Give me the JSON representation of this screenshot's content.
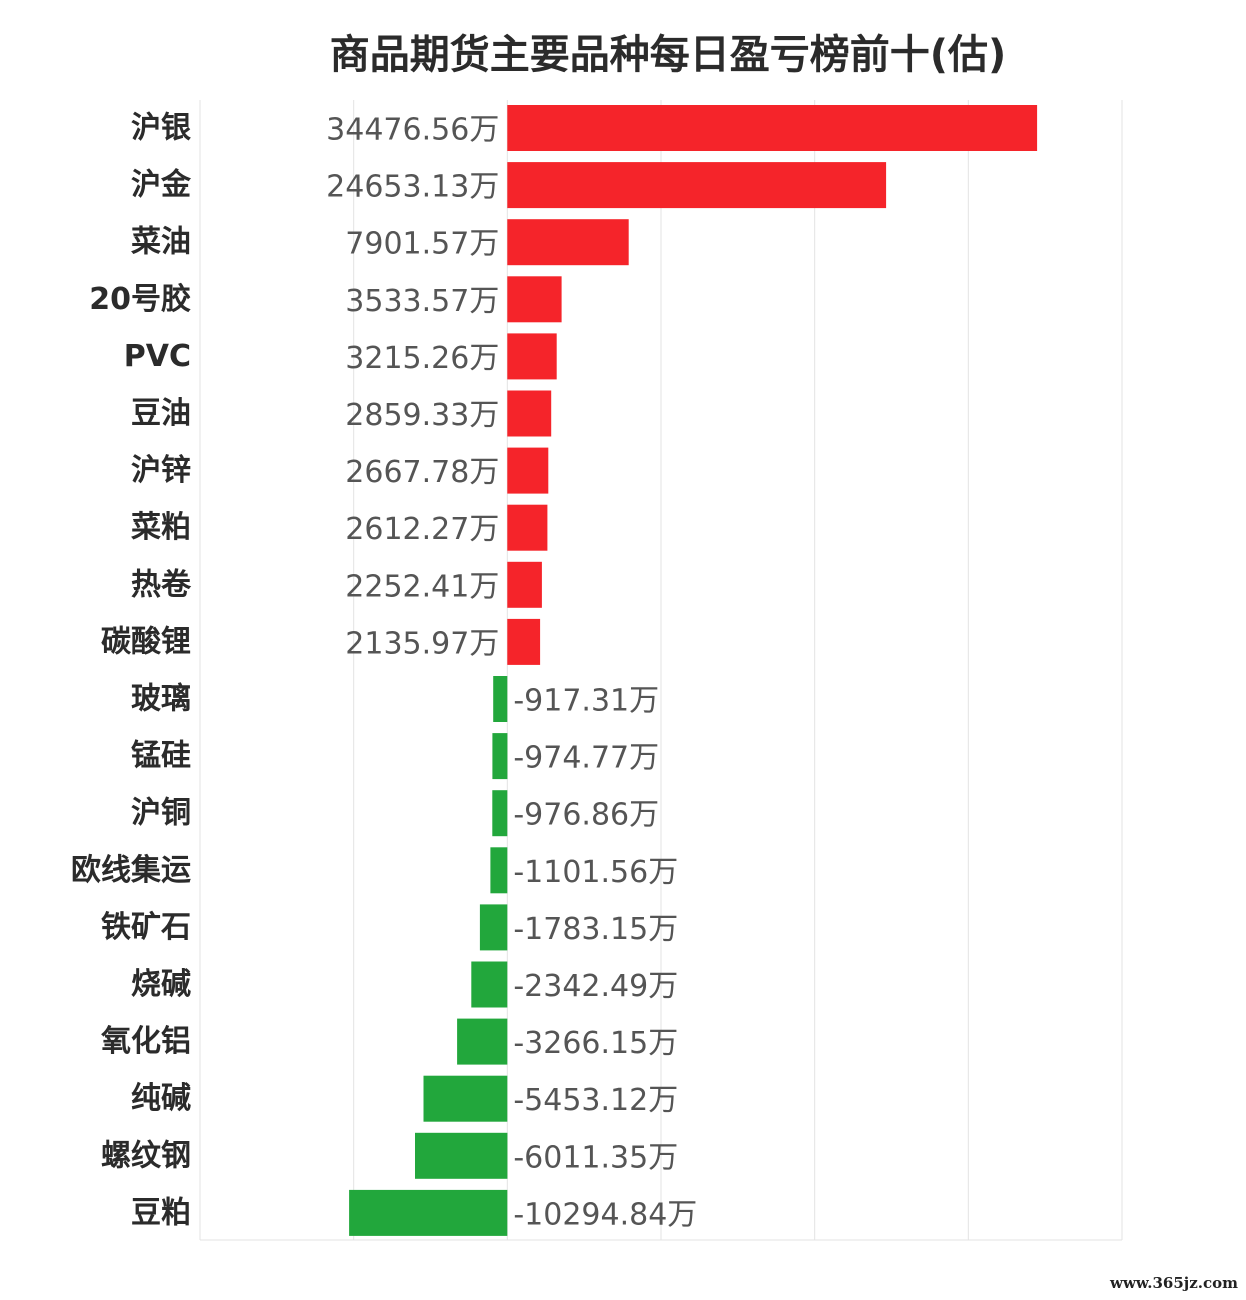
{
  "watermark": "www.365jz.com",
  "chart_data": {
    "type": "bar",
    "orientation": "horizontal",
    "title": "商品期货主要品种每日盈亏榜前十(估)",
    "unit_suffix": "万",
    "xlim": [
      -20000,
      40000
    ],
    "grid": true,
    "colors": {
      "positive": "#f5242a",
      "negative": "#22a73c",
      "grid": "#e3e3e3"
    },
    "categories": [
      "沪银",
      "沪金",
      "菜油",
      "20号胶",
      "PVC",
      "豆油",
      "沪锌",
      "菜粕",
      "热卷",
      "碳酸锂",
      "玻璃",
      "锰硅",
      "沪铜",
      "欧线集运",
      "铁矿石",
      "烧碱",
      "氧化铝",
      "纯碱",
      "螺纹钢",
      "豆粕"
    ],
    "values": [
      34476.56,
      24653.13,
      7901.57,
      3533.57,
      3215.26,
      2859.33,
      2667.78,
      2612.27,
      2252.41,
      2135.97,
      -917.31,
      -974.77,
      -976.86,
      -1101.56,
      -1783.15,
      -2342.49,
      -3266.15,
      -5453.12,
      -6011.35,
      -10294.84
    ],
    "value_labels": [
      "34476.56万",
      "24653.13万",
      "7901.57万",
      "3533.57万",
      "3215.26万",
      "2859.33万",
      "2667.78万",
      "2612.27万",
      "2252.41万",
      "2135.97万",
      "-917.31万",
      "-974.77万",
      "-976.86万",
      "-1101.56万",
      "-1783.15万",
      "-2342.49万",
      "-3266.15万",
      "-5453.12万",
      "-6011.35万",
      "-10294.84万"
    ]
  }
}
